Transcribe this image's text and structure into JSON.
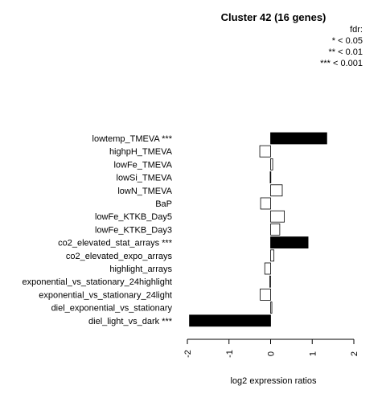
{
  "chart_data": {
    "type": "bar",
    "orientation": "horizontal",
    "title": "Cluster 42 (16 genes)",
    "xlabel": "log2 expression ratios",
    "ylabel": "",
    "xlim": [
      -2,
      2
    ],
    "xticks": [
      "-2",
      "-1",
      "0",
      "1",
      "2"
    ],
    "legend": {
      "title": "fdr:",
      "entries": [
        "* < 0.05",
        "** < 0.01",
        "*** < 0.001"
      ],
      "position": "top-right"
    },
    "categories": [
      "lowtemp_TMEVA ***",
      "highpH_TMEVA",
      "lowFe_TMEVA",
      "lowSi_TMEVA",
      "lowN_TMEVA",
      "BaP",
      "lowFe_KTKB_Day5",
      "lowFe_KTKB_Day3",
      "co2_elevated_stat_arrays ***",
      "co2_elevated_expo_arrays",
      "highlight_arrays",
      "exponential_vs_stationary_24highlight",
      "exponential_vs_stationary_24light",
      "diel_exponential_vs_stationary",
      "diel_light_vs_dark ***"
    ],
    "values": [
      1.35,
      -0.26,
      0.05,
      -0.01,
      0.28,
      -0.24,
      0.33,
      0.22,
      0.9,
      0.08,
      -0.14,
      -0.02,
      -0.25,
      0.03,
      -1.95
    ],
    "significant": [
      true,
      false,
      false,
      false,
      false,
      false,
      false,
      false,
      true,
      false,
      false,
      false,
      false,
      false,
      true
    ],
    "colors": {
      "significant": "#000000",
      "normal": "#ffffff",
      "border": "#000000"
    }
  }
}
